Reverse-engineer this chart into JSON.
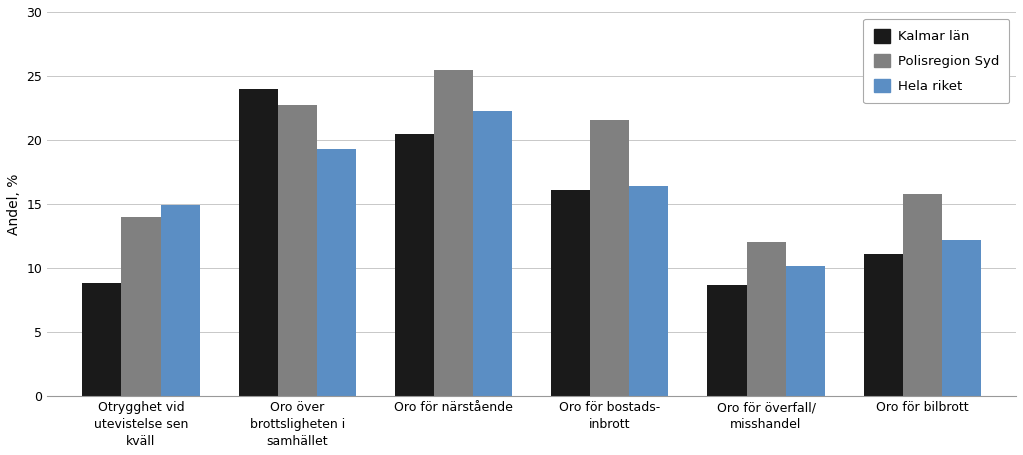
{
  "categories": [
    "Otrygghet vid\nutevistelse sen\nkväll",
    "Oro över\nbrottsligheten i\nsamhället",
    "Oro för närstående",
    "Oro för bostads-\ninbrott",
    "Oro för överfall/\nmisshandel",
    "Oro för bilbrott"
  ],
  "series": [
    {
      "name": "Kalmar län",
      "color": "#1a1a1a",
      "values": [
        8.8,
        24.0,
        20.5,
        16.1,
        8.7,
        11.1
      ]
    },
    {
      "name": "Polisregion Syd",
      "color": "#808080",
      "values": [
        14.0,
        22.7,
        25.5,
        21.6,
        12.0,
        15.8
      ]
    },
    {
      "name": "Hela riket",
      "color": "#5b8ec4",
      "values": [
        14.9,
        19.3,
        22.3,
        16.4,
        10.2,
        12.2
      ]
    }
  ],
  "ylabel": "Andel, %",
  "ylim": [
    0,
    30
  ],
  "yticks": [
    0,
    5,
    10,
    15,
    20,
    25,
    30
  ],
  "bar_width": 0.25,
  "background_color": "#ffffff",
  "grid_color": "#c8c8c8",
  "tick_fontsize": 9.0,
  "ylabel_fontsize": 10,
  "legend_fontsize": 9.5
}
